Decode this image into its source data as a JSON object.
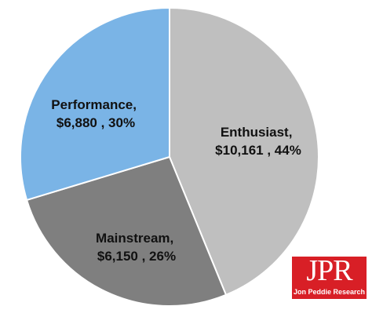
{
  "chart_data": {
    "type": "pie",
    "title": "",
    "unit": "$",
    "slices": [
      {
        "label": "Enthusiast",
        "value": 10161,
        "percent": 44,
        "color": "#bfbfbf",
        "text_line1": "Enthusiast,",
        "text_line2": "$10,161 , 44%"
      },
      {
        "label": "Mainstream",
        "value": 6150,
        "percent": 26,
        "color": "#7f7f7f",
        "text_line1": "Mainstream,",
        "text_line2": "$6,150 , 26%"
      },
      {
        "label": "Performance",
        "value": 6880,
        "percent": 30,
        "color": "#7ab4e6",
        "text_line1": "Performance,",
        "text_line2": "$6,880 , 30%"
      }
    ],
    "start": "12 o'clock",
    "direction": "clockwise"
  },
  "logo": {
    "letters": "JPR",
    "subtitle": "Jon Peddie Research",
    "color": "#d81f26"
  }
}
